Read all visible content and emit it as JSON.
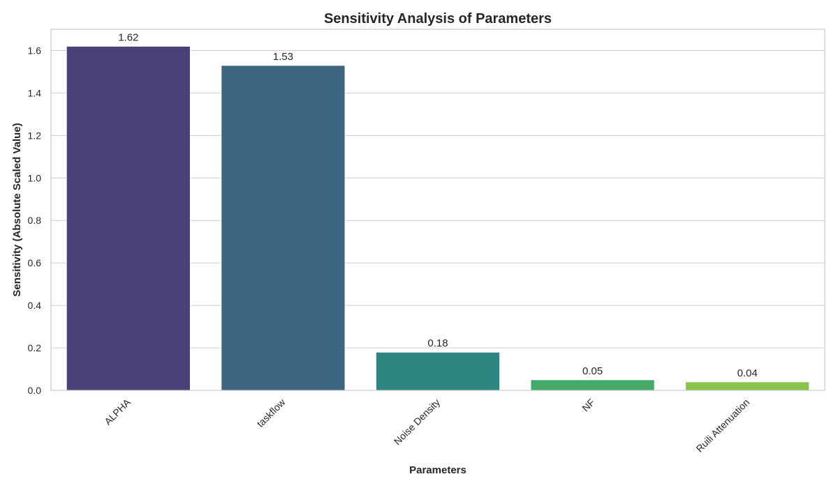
{
  "chart_data": {
    "type": "bar",
    "title": "Sensitivity Analysis of Parameters",
    "xlabel": "Parameters",
    "ylabel": "Sensitivity (Absolute Scaled Value)",
    "categories": [
      "ALPHA",
      "taskflow",
      "Noise Density",
      "NF",
      "Ruili Attenuation"
    ],
    "values": [
      1.62,
      1.53,
      0.18,
      0.05,
      0.04
    ],
    "value_labels": [
      "1.62",
      "1.53",
      "0.18",
      "0.05",
      "0.04"
    ],
    "colors": [
      "#4a4178",
      "#3e6681",
      "#2e857f",
      "#45a96c",
      "#89c34e"
    ],
    "ylim": [
      0,
      1.7
    ],
    "yticks": [
      0.0,
      0.2,
      0.4,
      0.6,
      0.8,
      1.0,
      1.2,
      1.4,
      1.6
    ],
    "ytick_labels": [
      "0.0",
      "0.2",
      "0.4",
      "0.6",
      "0.8",
      "1.0",
      "1.2",
      "1.4",
      "1.6"
    ],
    "grid": true,
    "grid_axis": "y",
    "xtick_rotation_deg": 45
  }
}
